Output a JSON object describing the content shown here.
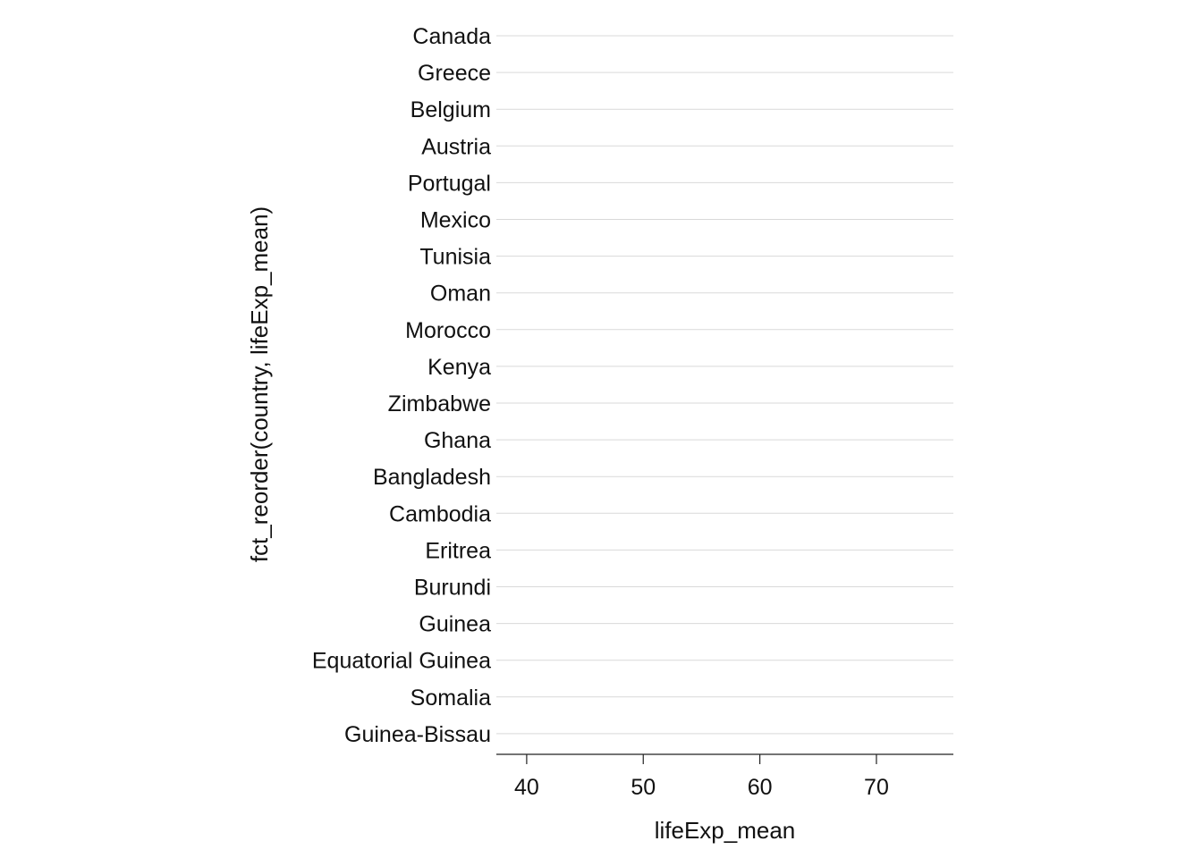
{
  "chart_data": {
    "type": "scatter",
    "xlabel": "lifeExp_mean",
    "ylabel": "fct_reorder(country, lifeExp_mean)",
    "categories": [
      "Canada",
      "Greece",
      "Belgium",
      "Austria",
      "Portugal",
      "Mexico",
      "Tunisia",
      "Oman",
      "Morocco",
      "Kenya",
      "Zimbabwe",
      "Ghana",
      "Bangladesh",
      "Cambodia",
      "Eritrea",
      "Burundi",
      "Guinea",
      "Equatorial Guinea",
      "Somalia",
      "Guinea-Bissau"
    ],
    "xticks": [
      40,
      50,
      60,
      70
    ],
    "xlim": [
      37.4,
      76.6
    ],
    "grid": true,
    "series": []
  }
}
